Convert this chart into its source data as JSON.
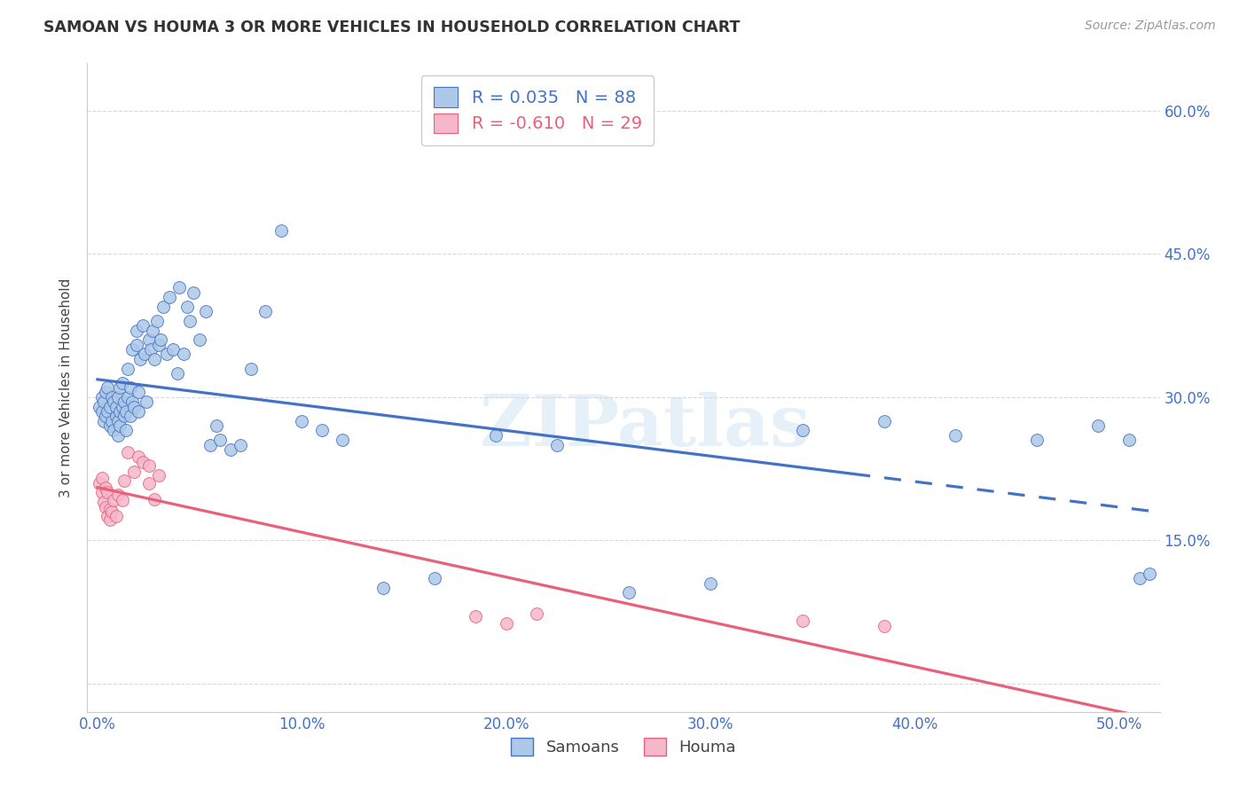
{
  "title": "SAMOAN VS HOUMA 3 OR MORE VEHICLES IN HOUSEHOLD CORRELATION CHART",
  "source": "Source: ZipAtlas.com",
  "ylabel": "3 or more Vehicles in Household",
  "ytick_labels": [
    "",
    "15.0%",
    "30.0%",
    "45.0%",
    "60.0%"
  ],
  "yticks": [
    0.0,
    0.15,
    0.3,
    0.45,
    0.6
  ],
  "xticks": [
    0.0,
    0.1,
    0.2,
    0.3,
    0.4,
    0.5
  ],
  "xlim": [
    -0.005,
    0.52
  ],
  "ylim": [
    -0.03,
    0.65
  ],
  "samoans_color": "#adc8e8",
  "houma_color": "#f5b8cb",
  "samoans_line_color": "#4472c4",
  "houma_line_color": "#e8607a",
  "R_samoans": 0.035,
  "N_samoans": 88,
  "R_houma": -0.61,
  "N_houma": 29,
  "samoans_line_solid_end": 0.37,
  "samoans_x": [
    0.001,
    0.002,
    0.002,
    0.003,
    0.003,
    0.004,
    0.004,
    0.005,
    0.005,
    0.006,
    0.006,
    0.007,
    0.007,
    0.008,
    0.008,
    0.009,
    0.009,
    0.01,
    0.01,
    0.01,
    0.011,
    0.011,
    0.011,
    0.012,
    0.012,
    0.013,
    0.013,
    0.014,
    0.014,
    0.015,
    0.015,
    0.016,
    0.016,
    0.017,
    0.017,
    0.018,
    0.019,
    0.019,
    0.02,
    0.02,
    0.021,
    0.022,
    0.023,
    0.024,
    0.025,
    0.026,
    0.027,
    0.028,
    0.029,
    0.03,
    0.031,
    0.032,
    0.034,
    0.035,
    0.037,
    0.039,
    0.04,
    0.042,
    0.044,
    0.045,
    0.047,
    0.05,
    0.053,
    0.055,
    0.058,
    0.06,
    0.065,
    0.07,
    0.075,
    0.082,
    0.09,
    0.1,
    0.11,
    0.12,
    0.14,
    0.165,
    0.195,
    0.225,
    0.26,
    0.3,
    0.345,
    0.385,
    0.42,
    0.46,
    0.49,
    0.505,
    0.51,
    0.515
  ],
  "samoans_y": [
    0.29,
    0.285,
    0.3,
    0.275,
    0.295,
    0.28,
    0.305,
    0.285,
    0.31,
    0.29,
    0.27,
    0.3,
    0.275,
    0.265,
    0.295,
    0.28,
    0.29,
    0.26,
    0.275,
    0.3,
    0.285,
    0.31,
    0.27,
    0.29,
    0.315,
    0.28,
    0.295,
    0.265,
    0.285,
    0.3,
    0.33,
    0.28,
    0.31,
    0.295,
    0.35,
    0.29,
    0.37,
    0.355,
    0.305,
    0.285,
    0.34,
    0.375,
    0.345,
    0.295,
    0.36,
    0.35,
    0.37,
    0.34,
    0.38,
    0.355,
    0.36,
    0.395,
    0.345,
    0.405,
    0.35,
    0.325,
    0.415,
    0.345,
    0.395,
    0.38,
    0.41,
    0.36,
    0.39,
    0.25,
    0.27,
    0.255,
    0.245,
    0.25,
    0.33,
    0.39,
    0.475,
    0.275,
    0.265,
    0.255,
    0.1,
    0.11,
    0.26,
    0.25,
    0.095,
    0.105,
    0.265,
    0.275,
    0.26,
    0.255,
    0.27,
    0.255,
    0.11,
    0.115
  ],
  "houma_x": [
    0.001,
    0.002,
    0.002,
    0.003,
    0.004,
    0.004,
    0.005,
    0.005,
    0.006,
    0.006,
    0.007,
    0.008,
    0.009,
    0.01,
    0.012,
    0.013,
    0.015,
    0.018,
    0.02,
    0.022,
    0.025,
    0.025,
    0.028,
    0.03,
    0.185,
    0.2,
    0.215,
    0.345,
    0.385
  ],
  "houma_y": [
    0.21,
    0.215,
    0.2,
    0.19,
    0.205,
    0.185,
    0.175,
    0.2,
    0.183,
    0.172,
    0.18,
    0.192,
    0.175,
    0.198,
    0.192,
    0.212,
    0.242,
    0.222,
    0.238,
    0.232,
    0.21,
    0.228,
    0.193,
    0.218,
    0.07,
    0.063,
    0.073,
    0.066,
    0.06
  ],
  "watermark": "ZIPatlas",
  "background_color": "#ffffff",
  "grid_color": "#d0d0d0"
}
